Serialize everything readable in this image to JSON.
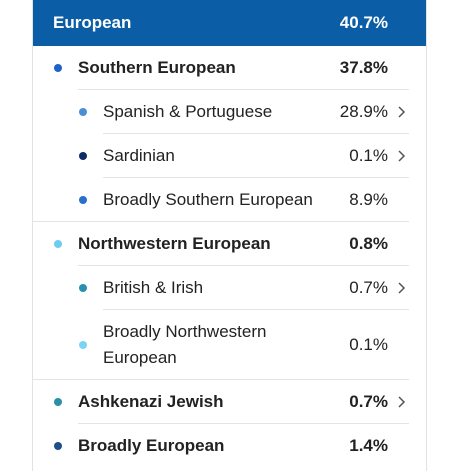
{
  "header": {
    "label": "European",
    "value": "40.7%"
  },
  "rows": [
    {
      "label": "Southern European",
      "value": "37.8%",
      "color": "#1f63c6",
      "level": 1,
      "chevron": false
    },
    {
      "label": "Spanish & Portuguese",
      "value": "28.9%",
      "color": "#4a8fd6",
      "level": 2,
      "chevron": true
    },
    {
      "label": "Sardinian",
      "value": "0.1%",
      "color": "#0e2d66",
      "level": 2,
      "chevron": true
    },
    {
      "label": "Broadly Southern European",
      "value": "8.9%",
      "color": "#2870cc",
      "level": 2,
      "chevron": false
    },
    {
      "label": "Northwestern European",
      "value": "0.8%",
      "color": "#6ccdf2",
      "level": 1,
      "chevron": false
    },
    {
      "label": "British & Irish",
      "value": "0.7%",
      "color": "#2a8fb0",
      "level": 2,
      "chevron": true
    },
    {
      "label": "Broadly Northwestern European",
      "value": "0.1%",
      "color": "#7dd4f2",
      "level": 2,
      "chevron": false
    },
    {
      "label": "Ashkenazi Jewish",
      "value": "0.7%",
      "color": "#2a8fa8",
      "level": 1,
      "chevron": true
    },
    {
      "label": "Broadly European",
      "value": "1.4%",
      "color": "#1d4f8c",
      "level": 1,
      "chevron": false
    }
  ]
}
